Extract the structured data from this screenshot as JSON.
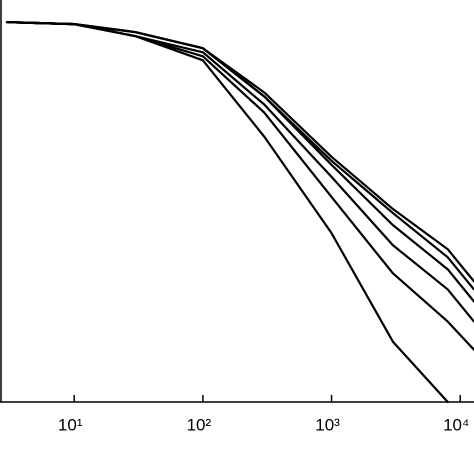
{
  "chart_data": {
    "type": "line",
    "x": [
      3,
      10,
      30,
      100,
      300,
      1000,
      3000,
      8000,
      12800
    ],
    "series": [
      {
        "color": "#000000",
        "values": [
          0.945,
          0.94,
          0.91,
          0.85,
          0.66,
          0.42,
          0.15,
          0,
          null
        ]
      },
      {
        "color": "#000000",
        "values": [
          0.945,
          0.94,
          0.91,
          0.86,
          0.72,
          0.51,
          0.32,
          0.2,
          0.13
        ]
      },
      {
        "color": "#000000",
        "values": [
          0.945,
          0.94,
          0.91,
          0.87,
          0.74,
          0.56,
          0.39,
          0.28,
          0.2
        ]
      },
      {
        "color": "#000000",
        "values": [
          0.945,
          0.94,
          0.92,
          0.88,
          0.76,
          0.59,
          0.44,
          0.33,
          0.25
        ]
      },
      {
        "color": "#000000",
        "values": [
          0.945,
          0.94,
          0.92,
          0.88,
          0.76,
          0.6,
          0.47,
          0.36,
          0.28
        ]
      },
      {
        "color": "#000000",
        "values": [
          0.945,
          0.94,
          0.92,
          0.88,
          0.77,
          0.61,
          0.48,
          0.38,
          0.3
        ]
      }
    ],
    "xlim": [
      2.65,
      12800
    ],
    "xticks": [
      {
        "value": 10,
        "label": "10¹"
      },
      {
        "value": 100,
        "label": "10²"
      },
      {
        "value": 1000,
        "label": "10³"
      },
      {
        "value": 10000,
        "label": "10⁴"
      }
    ],
    "xscale": "log",
    "ylim": [
      0,
      1
    ]
  }
}
